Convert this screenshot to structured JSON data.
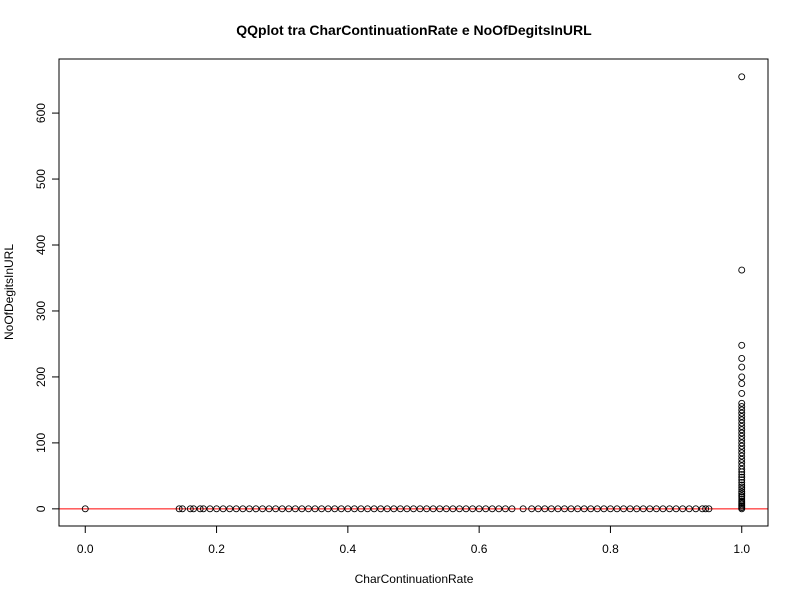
{
  "chart_data": {
    "type": "scatter",
    "title": "QQplot tra CharContinuationRate e NoOfDegitsInURL",
    "xlabel": "CharContinuationRate",
    "ylabel": "NoOfDegitsInURL",
    "xlim": [
      -0.04,
      1.04
    ],
    "ylim": [
      -26,
      682
    ],
    "x_ticks": [
      0.0,
      0.2,
      0.4,
      0.6,
      0.8,
      1.0
    ],
    "x_tick_labels": [
      "0.0",
      "0.2",
      "0.4",
      "0.6",
      "0.8",
      "1.0"
    ],
    "y_ticks": [
      0,
      100,
      200,
      300,
      400,
      500,
      600
    ],
    "y_tick_labels": [
      "0",
      "100",
      "200",
      "300",
      "400",
      "500",
      "600"
    ],
    "grid": false,
    "reference_line": {
      "y": 0,
      "color": "#ff0000"
    },
    "point_style": {
      "shape": "open-circle",
      "color": "#000000"
    },
    "points": [
      [
        0.0,
        0
      ],
      [
        0.143,
        0
      ],
      [
        0.148,
        0
      ],
      [
        0.16,
        0
      ],
      [
        0.165,
        0
      ],
      [
        0.175,
        0
      ],
      [
        0.18,
        0
      ],
      [
        0.19,
        0
      ],
      [
        0.2,
        0
      ],
      [
        0.21,
        0
      ],
      [
        0.22,
        0
      ],
      [
        0.23,
        0
      ],
      [
        0.24,
        0
      ],
      [
        0.25,
        0
      ],
      [
        0.26,
        0
      ],
      [
        0.27,
        0
      ],
      [
        0.28,
        0
      ],
      [
        0.29,
        0
      ],
      [
        0.3,
        0
      ],
      [
        0.31,
        0
      ],
      [
        0.32,
        0
      ],
      [
        0.33,
        0
      ],
      [
        0.34,
        0
      ],
      [
        0.35,
        0
      ],
      [
        0.36,
        0
      ],
      [
        0.37,
        0
      ],
      [
        0.38,
        0
      ],
      [
        0.39,
        0
      ],
      [
        0.4,
        0
      ],
      [
        0.41,
        0
      ],
      [
        0.42,
        0
      ],
      [
        0.43,
        0
      ],
      [
        0.44,
        0
      ],
      [
        0.45,
        0
      ],
      [
        0.46,
        0
      ],
      [
        0.47,
        0
      ],
      [
        0.48,
        0
      ],
      [
        0.49,
        0
      ],
      [
        0.5,
        0
      ],
      [
        0.51,
        0
      ],
      [
        0.52,
        0
      ],
      [
        0.53,
        0
      ],
      [
        0.54,
        0
      ],
      [
        0.55,
        0
      ],
      [
        0.56,
        0
      ],
      [
        0.57,
        0
      ],
      [
        0.58,
        0
      ],
      [
        0.59,
        0
      ],
      [
        0.6,
        0
      ],
      [
        0.61,
        0
      ],
      [
        0.62,
        0
      ],
      [
        0.63,
        0
      ],
      [
        0.64,
        0
      ],
      [
        0.65,
        0
      ],
      [
        0.667,
        0
      ],
      [
        0.68,
        0
      ],
      [
        0.69,
        0
      ],
      [
        0.7,
        0
      ],
      [
        0.71,
        0
      ],
      [
        0.72,
        0
      ],
      [
        0.73,
        0
      ],
      [
        0.74,
        0
      ],
      [
        0.75,
        0
      ],
      [
        0.76,
        0
      ],
      [
        0.77,
        0
      ],
      [
        0.78,
        0
      ],
      [
        0.79,
        0
      ],
      [
        0.8,
        0
      ],
      [
        0.81,
        0
      ],
      [
        0.82,
        0
      ],
      [
        0.83,
        0
      ],
      [
        0.84,
        0
      ],
      [
        0.85,
        0
      ],
      [
        0.86,
        0
      ],
      [
        0.87,
        0
      ],
      [
        0.88,
        0
      ],
      [
        0.89,
        0
      ],
      [
        0.9,
        0
      ],
      [
        0.91,
        0
      ],
      [
        0.92,
        0
      ],
      [
        0.93,
        0
      ],
      [
        0.94,
        0
      ],
      [
        0.945,
        0
      ],
      [
        0.95,
        0
      ],
      [
        1.0,
        0
      ],
      [
        1.0,
        2
      ],
      [
        1.0,
        4
      ],
      [
        1.0,
        6
      ],
      [
        1.0,
        8
      ],
      [
        1.0,
        10
      ],
      [
        1.0,
        12
      ],
      [
        1.0,
        15
      ],
      [
        1.0,
        18
      ],
      [
        1.0,
        20
      ],
      [
        1.0,
        23
      ],
      [
        1.0,
        26
      ],
      [
        1.0,
        30
      ],
      [
        1.0,
        33
      ],
      [
        1.0,
        36
      ],
      [
        1.0,
        40
      ],
      [
        1.0,
        44
      ],
      [
        1.0,
        48
      ],
      [
        1.0,
        52
      ],
      [
        1.0,
        56
      ],
      [
        1.0,
        60
      ],
      [
        1.0,
        65
      ],
      [
        1.0,
        70
      ],
      [
        1.0,
        75
      ],
      [
        1.0,
        80
      ],
      [
        1.0,
        85
      ],
      [
        1.0,
        90
      ],
      [
        1.0,
        95
      ],
      [
        1.0,
        100
      ],
      [
        1.0,
        105
      ],
      [
        1.0,
        110
      ],
      [
        1.0,
        115
      ],
      [
        1.0,
        120
      ],
      [
        1.0,
        125
      ],
      [
        1.0,
        130
      ],
      [
        1.0,
        135
      ],
      [
        1.0,
        140
      ],
      [
        1.0,
        145
      ],
      [
        1.0,
        150
      ],
      [
        1.0,
        155
      ],
      [
        1.0,
        160
      ],
      [
        1.0,
        175
      ],
      [
        1.0,
        190
      ],
      [
        1.0,
        200
      ],
      [
        1.0,
        215
      ],
      [
        1.0,
        228
      ],
      [
        1.0,
        248
      ],
      [
        1.0,
        362
      ],
      [
        1.0,
        655
      ]
    ]
  }
}
